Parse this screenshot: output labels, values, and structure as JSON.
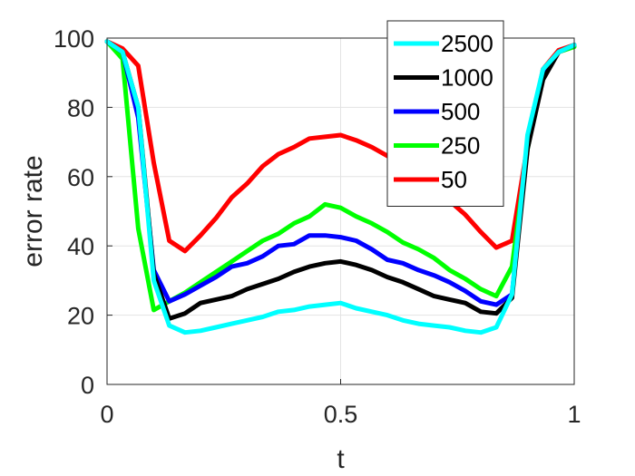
{
  "chart_data": {
    "type": "line",
    "title": "",
    "xlabel": "t",
    "ylabel": "error rate",
    "xlim": [
      0,
      1
    ],
    "ylim": [
      0,
      100
    ],
    "xticks": [
      0,
      0.5,
      1
    ],
    "xtick_labels": [
      "0",
      "0.5",
      "1"
    ],
    "yticks": [
      0,
      20,
      40,
      60,
      80,
      100
    ],
    "ytick_labels": [
      "0",
      "20",
      "40",
      "60",
      "80",
      "100"
    ],
    "grid": true,
    "legend_position": "top-right",
    "x": [
      0,
      0.0333,
      0.0667,
      0.1,
      0.1333,
      0.1667,
      0.2,
      0.2333,
      0.2667,
      0.3,
      0.3333,
      0.3667,
      0.4,
      0.4333,
      0.4667,
      0.5,
      0.5333,
      0.5667,
      0.6,
      0.6333,
      0.6667,
      0.7,
      0.7333,
      0.7667,
      0.8,
      0.8333,
      0.8667,
      0.9,
      0.9333,
      0.9667,
      1
    ],
    "series": [
      {
        "name": "2500",
        "color": "#00ffff",
        "values": [
          99,
          96,
          80,
          30,
          17,
          15,
          15.5,
          16.5,
          17.5,
          18.5,
          19.5,
          21,
          21.5,
          22.5,
          23,
          23.5,
          22,
          21,
          20,
          18.5,
          17.5,
          17,
          16.5,
          15.5,
          15,
          16.5,
          26,
          72,
          91,
          96,
          98
        ]
      },
      {
        "name": "1000",
        "color": "#000000",
        "values": [
          99,
          96,
          80,
          32,
          19,
          20.5,
          23.5,
          24.5,
          25.5,
          27.5,
          29,
          30.5,
          32.5,
          34,
          35,
          35.5,
          34.5,
          33,
          31,
          29.5,
          27.5,
          25.5,
          24.5,
          23.5,
          21,
          20.5,
          25,
          68,
          88,
          96,
          98
        ]
      },
      {
        "name": "500",
        "color": "#0000ff",
        "values": [
          99,
          96,
          77,
          33,
          24,
          26,
          28.5,
          31,
          34,
          35,
          37,
          40,
          40.5,
          43,
          43,
          42.5,
          41.5,
          39,
          36,
          35,
          33,
          31.5,
          29.5,
          27,
          24,
          23,
          26,
          70,
          90,
          96,
          98
        ]
      },
      {
        "name": "250",
        "color": "#00ff00",
        "values": [
          99,
          94,
          45,
          21.5,
          24,
          26.5,
          29.5,
          32.5,
          35.5,
          38.5,
          41.5,
          43.5,
          46.5,
          48.5,
          52,
          51,
          48.5,
          46.5,
          44,
          41,
          39,
          36.5,
          33,
          30.5,
          27.5,
          25.5,
          34,
          68,
          90,
          96,
          97.5
        ]
      },
      {
        "name": "50",
        "color": "#ff0000",
        "values": [
          99,
          97,
          92,
          64,
          41.5,
          38.5,
          43,
          48,
          54,
          58,
          63,
          66.5,
          68.5,
          71,
          71.5,
          72,
          70.5,
          68.5,
          66,
          63.5,
          61.5,
          58,
          53,
          49,
          44,
          39.5,
          41.5,
          69,
          91,
          96.5,
          98
        ]
      }
    ]
  }
}
